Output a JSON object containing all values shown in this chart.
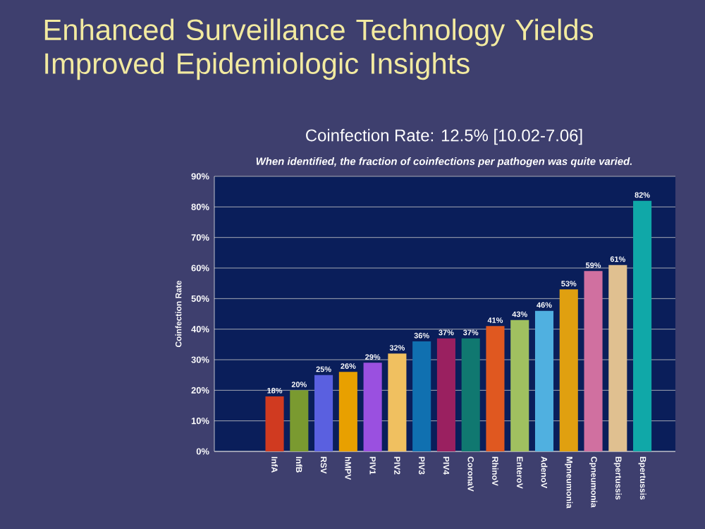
{
  "chart_data": {
    "type": "bar",
    "title": "Enhanced Surveillance Technology Yields Improved Epidemiologic Insights",
    "subtitle": "Coinfection Rate: 12.5% [10.02-7.06]",
    "annotations": [
      "*When identified, the fraction of coinfections per pathogen was quite varied.*"
    ],
    "ylabel": "Coinfection Rate",
    "categories": [
      "InfA",
      "InfB",
      "RSV",
      "hMPV",
      "PIV1",
      "PIV2",
      "PIV3",
      "PIV4",
      "CoronaV",
      "RhinoV",
      "EnteroV",
      "AdenoV",
      "Mpneumonia",
      "Cpneumonia",
      "Bpertussis",
      "Bpertussis"
    ],
    "values": [
      18,
      20,
      25,
      26,
      29,
      32,
      36,
      37,
      37,
      41,
      43,
      46,
      53,
      59,
      61,
      82
    ],
    "value_labels": [
      "18%",
      "20%",
      "25%",
      "26%",
      "29%",
      "32%",
      "36%",
      "37%",
      "37%",
      "41%",
      "43%",
      "46%",
      "53%",
      "59%",
      "61%",
      "82%"
    ],
    "colors": [
      "#d03a20",
      "#7a9a30",
      "#5a60e0",
      "#e8a000",
      "#9a50e0",
      "#f0c060",
      "#1070b0",
      "#9a2060",
      "#107870",
      "#e05820",
      "#a0c060",
      "#50b0e0",
      "#e0a010",
      "#d070a0",
      "#e0c090",
      "#10a8a8"
    ],
    "ylim": [
      0,
      90
    ],
    "yticks": [
      {
        "value": 0,
        "label": "0%"
      },
      {
        "value": 10,
        "label": "10%"
      },
      {
        "value": 20,
        "label": "20%"
      },
      {
        "value": 30,
        "label": "30%"
      },
      {
        "value": 40,
        "label": "40%"
      },
      {
        "value": 50,
        "label": "50%"
      },
      {
        "value": 60,
        "label": "60%"
      },
      {
        "value": 70,
        "label": "70%"
      },
      {
        "value": 80,
        "label": "80%"
      },
      {
        "value": 90,
        "label": "90%"
      }
    ],
    "grid": "y"
  }
}
